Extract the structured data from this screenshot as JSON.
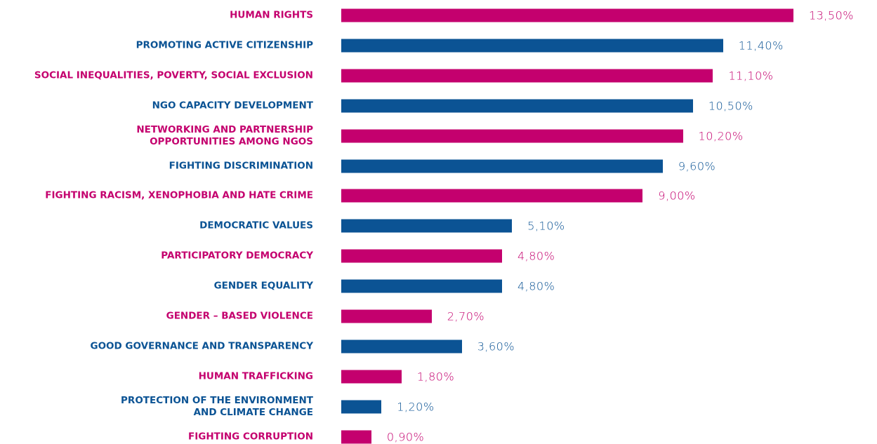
{
  "chart_data": {
    "type": "bar",
    "orientation": "horizontal",
    "categories": [
      "HUMAN RIGHTS",
      "PROMOTING ACTIVE CITIZENSHIP",
      "SOCIAL INEQUALITIES, POVERTY, SOCIAL EXCLUSION",
      "NGO CAPACITY DEVELOPMENT",
      "NETWORKING AND PARTNERSHIP\nOPPORTUNITIES AMONG NGOS",
      "FIGHTING DISCRIMINATION",
      "FIGHTING RACISM, XENOPHOBIA AND HATE CRIME",
      "DEMOCRATIC VALUES",
      "PARTICIPATORY DEMOCRACY",
      "GENDER EQUALITY",
      "GENDER – BASED VIOLENCE",
      "GOOD GOVERNANCE AND TRANSPARENCY",
      "HUMAN TRAFFICKING",
      "PROTECTION OF THE ENVIRONMENT\nAND CLIMATE CHANGE",
      "FIGHTING CORRUPTION"
    ],
    "values": [
      13.5,
      11.4,
      11.1,
      10.5,
      10.2,
      9.6,
      9.0,
      5.1,
      4.8,
      4.8,
      2.7,
      3.6,
      1.8,
      1.2,
      0.9
    ],
    "value_labels": [
      "13,50%",
      "11,40%",
      "11,10%",
      "10,50%",
      "10,20%",
      "9,60%",
      "9,00%",
      "5,10%",
      "4,80%",
      "4,80%",
      "2,70%",
      "3,60%",
      "1,80%",
      "1,20%",
      "0,90%"
    ],
    "colors": [
      "#c4006e",
      "#0b5394",
      "#c4006e",
      "#0b5394",
      "#c4006e",
      "#0b5394",
      "#c4006e",
      "#0b5394",
      "#c4006e",
      "#0b5394",
      "#c4006e",
      "#0b5394",
      "#c4006e",
      "#0b5394",
      "#c4006e"
    ]
  }
}
